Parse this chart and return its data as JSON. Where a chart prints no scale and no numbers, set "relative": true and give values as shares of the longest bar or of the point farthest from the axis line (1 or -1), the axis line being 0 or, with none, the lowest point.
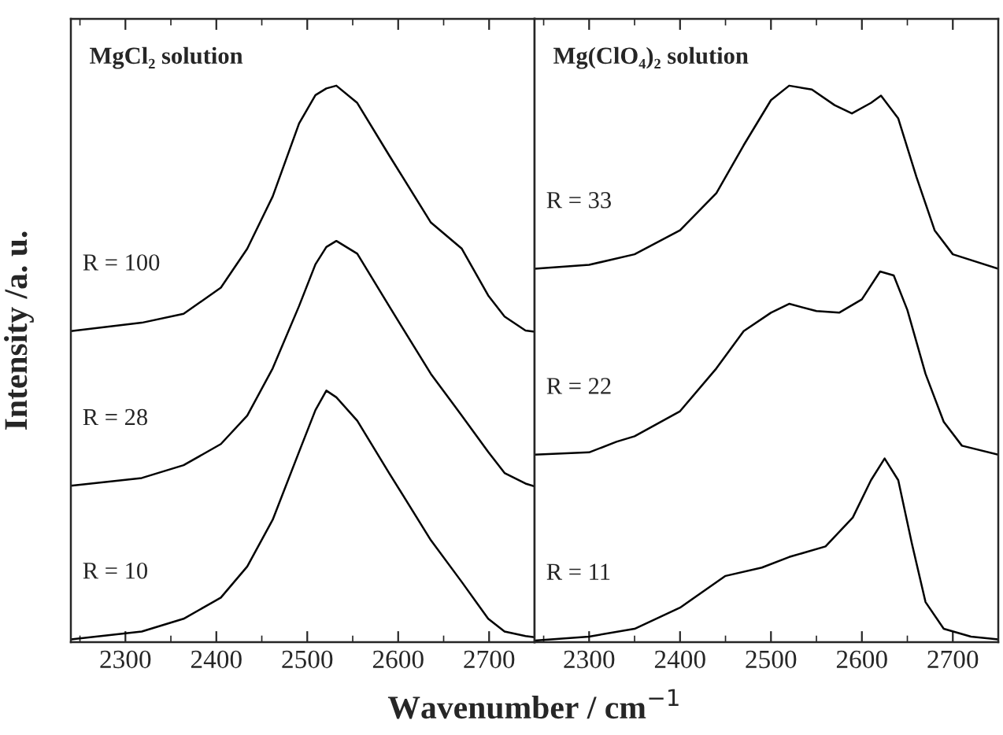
{
  "chart_data": [
    {
      "type": "line",
      "title": "MgCl₂ solution",
      "ylabel": "Intensity /a. u.",
      "xlabel": "Wavenumber / cm$^{−1}$",
      "relative": true,
      "xlim": [
        2240,
        2750
      ],
      "xticks": [
        2300,
        2400,
        2500,
        2600,
        2700
      ],
      "legend": false,
      "grid": false,
      "marker": "none",
      "line_style": "solid",
      "tick_labels": "x",
      "x": [
        2240,
        2318,
        2364,
        2405,
        2434,
        2462,
        2491,
        2509,
        2521,
        2532,
        2555,
        2590,
        2636,
        2670,
        2699,
        2717,
        2740,
        2750
      ],
      "series": [
        {
          "name": "R = 100",
          "color": "#000000",
          "values": [
            0.559,
            0.574,
            0.59,
            0.637,
            0.707,
            0.801,
            0.932,
            0.983,
            0.995,
            1.0,
            0.969,
            0.875,
            0.754,
            0.707,
            0.623,
            0.585,
            0.56,
            0.558
          ]
        },
        {
          "name": "R = 28",
          "color": "#000000",
          "values": [
            0.281,
            0.295,
            0.318,
            0.356,
            0.407,
            0.492,
            0.604,
            0.679,
            0.71,
            0.721,
            0.698,
            0.604,
            0.482,
            0.407,
            0.342,
            0.304,
            0.285,
            0.28
          ]
        },
        {
          "name": "R = 10",
          "color": "#000000",
          "values": [
            0.005,
            0.019,
            0.042,
            0.08,
            0.136,
            0.22,
            0.342,
            0.417,
            0.452,
            0.44,
            0.398,
            0.304,
            0.183,
            0.108,
            0.042,
            0.019,
            0.011,
            0.009
          ]
        }
      ]
    },
    {
      "type": "line",
      "title": "Mg(ClO₄)₂ solution",
      "relative": true,
      "xlim": [
        2240,
        2750
      ],
      "xticks": [
        2300,
        2400,
        2500,
        2600,
        2700
      ],
      "legend": false,
      "grid": false,
      "marker": "none",
      "line_style": "solid",
      "tick_labels": "x",
      "series": [
        {
          "name": "R = 33",
          "color": "#000000",
          "x": [
            2240,
            2300,
            2350,
            2400,
            2440,
            2470,
            2500,
            2520,
            2545,
            2570,
            2589,
            2610,
            2621,
            2640,
            2660,
            2680,
            2700,
            2750
          ],
          "values": [
            0.671,
            0.678,
            0.697,
            0.74,
            0.807,
            0.893,
            0.974,
            1.0,
            0.993,
            0.965,
            0.95,
            0.969,
            0.982,
            0.941,
            0.836,
            0.74,
            0.697,
            0.671
          ]
        },
        {
          "name": "R = 22",
          "color": "#000000",
          "x": [
            2240,
            2300,
            2330,
            2350,
            2400,
            2440,
            2470,
            2500,
            2520,
            2550,
            2575,
            2600,
            2620,
            2635,
            2650,
            2670,
            2690,
            2710,
            2750
          ],
          "values": [
            0.337,
            0.341,
            0.36,
            0.37,
            0.415,
            0.492,
            0.559,
            0.592,
            0.608,
            0.595,
            0.592,
            0.616,
            0.666,
            0.659,
            0.597,
            0.482,
            0.396,
            0.353,
            0.337
          ]
        },
        {
          "name": "R = 11",
          "color": "#000000",
          "x": [
            2240,
            2300,
            2350,
            2400,
            2450,
            2490,
            2520,
            2560,
            2590,
            2610,
            2625,
            2640,
            2655,
            2670,
            2690,
            2720,
            2750
          ],
          "values": [
            0.003,
            0.01,
            0.024,
            0.062,
            0.119,
            0.134,
            0.153,
            0.172,
            0.224,
            0.291,
            0.33,
            0.291,
            0.177,
            0.072,
            0.024,
            0.01,
            0.005
          ]
        }
      ]
    }
  ]
}
